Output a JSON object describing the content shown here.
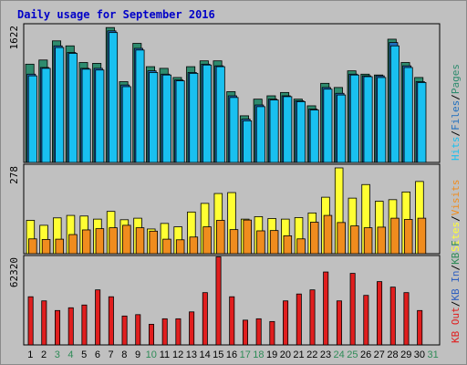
{
  "title": "Daily usage for September 2016",
  "colors": {
    "pages": "#2e8b6e",
    "files": "#1f6fbf",
    "hits": "#19c0f0",
    "visits": "#ffff33",
    "sites": "#f08c1e",
    "kb": "#e01e1e",
    "kb_in": "#2e5fbf",
    "kb_out": "#2e8b57",
    "weekend_label": "#2e8b57"
  },
  "chart_data": [
    {
      "type": "bar",
      "panel": "top",
      "ymax_label": "1622",
      "ylim": [
        0,
        1622
      ],
      "ylabel_parts": [
        "Pages",
        "/",
        "Files",
        "/",
        "Hits"
      ],
      "categories": [
        "1",
        "2",
        "3",
        "4",
        "5",
        "6",
        "7",
        "8",
        "9",
        "10",
        "11",
        "12",
        "13",
        "14",
        "15",
        "16",
        "17",
        "18",
        "19",
        "20",
        "21",
        "22",
        "23",
        "24",
        "25",
        "26",
        "27",
        "28",
        "29",
        "30"
      ],
      "series": [
        {
          "name": "Pages",
          "values": [
            1180,
            1230,
            1460,
            1400,
            1200,
            1190,
            1620,
            970,
            1430,
            1150,
            1130,
            1020,
            1150,
            1220,
            1220,
            850,
            560,
            760,
            800,
            840,
            760,
            680,
            950,
            900,
            1100,
            1060,
            1050,
            1480,
            1200,
            1020
          ]
        },
        {
          "name": "Files",
          "values": [
            1060,
            1140,
            1400,
            1320,
            1130,
            1130,
            1580,
            930,
            1370,
            1100,
            1060,
            990,
            1080,
            1180,
            1160,
            800,
            520,
            690,
            760,
            800,
            740,
            640,
            900,
            830,
            1060,
            1040,
            1040,
            1440,
            1160,
            970
          ]
        },
        {
          "name": "Hits",
          "values": [
            1040,
            1130,
            1380,
            1310,
            1120,
            1110,
            1560,
            910,
            1350,
            1080,
            1050,
            980,
            1070,
            1170,
            1150,
            780,
            500,
            670,
            750,
            790,
            730,
            630,
            880,
            810,
            1050,
            1030,
            1020,
            1400,
            1140,
            960
          ]
        }
      ]
    },
    {
      "type": "bar",
      "panel": "middle",
      "ymax_label": "278",
      "ylim": [
        0,
        278
      ],
      "ylabel_parts": [
        "Visits",
        "/",
        "Sites"
      ],
      "categories": [
        "1",
        "2",
        "3",
        "4",
        "5",
        "6",
        "7",
        "8",
        "9",
        "10",
        "11",
        "12",
        "13",
        "14",
        "15",
        "16",
        "17",
        "18",
        "19",
        "20",
        "21",
        "22",
        "23",
        "24",
        "25",
        "26",
        "27",
        "28",
        "29",
        "30"
      ],
      "series": [
        {
          "name": "Visits",
          "values": [
            108,
            92,
            116,
            124,
            122,
            112,
            137,
            110,
            115,
            80,
            98,
            87,
            135,
            163,
            195,
            198,
            112,
            120,
            114,
            112,
            117,
            132,
            183,
            278,
            180,
            224,
            170,
            175,
            200,
            234
          ]
        },
        {
          "name": "Sites",
          "values": [
            48,
            46,
            47,
            62,
            77,
            81,
            84,
            92,
            84,
            73,
            47,
            45,
            54,
            87,
            108,
            78,
            109,
            74,
            75,
            58,
            48,
            102,
            124,
            101,
            90,
            84,
            86,
            115,
            111,
            115
          ]
        }
      ]
    },
    {
      "type": "bar",
      "panel": "bottom",
      "ymax_label": "62320",
      "ylim": [
        0,
        62320
      ],
      "ylabel_parts": [
        "KB F",
        "/",
        "KB In",
        "/",
        "KB Out"
      ],
      "categories": [
        "1",
        "2",
        "3",
        "4",
        "5",
        "6",
        "7",
        "8",
        "9",
        "10",
        "11",
        "12",
        "13",
        "14",
        "15",
        "16",
        "17",
        "18",
        "19",
        "20",
        "21",
        "22",
        "23",
        "24",
        "25",
        "26",
        "27",
        "28",
        "29",
        "30"
      ],
      "series": [
        {
          "name": "KB F",
          "values": [
            35000,
            32000,
            25000,
            27000,
            29000,
            40000,
            35000,
            21000,
            22000,
            15000,
            19000,
            19000,
            24000,
            38000,
            64000,
            35000,
            18000,
            19000,
            17000,
            32000,
            37000,
            40000,
            53000,
            32000,
            52000,
            36000,
            46000,
            42000,
            38000,
            25000
          ]
        }
      ]
    }
  ],
  "x_axis": {
    "days": [
      "1",
      "2",
      "3",
      "4",
      "5",
      "6",
      "7",
      "8",
      "9",
      "10",
      "11",
      "12",
      "13",
      "14",
      "15",
      "16",
      "17",
      "18",
      "19",
      "20",
      "21",
      "22",
      "23",
      "24",
      "25",
      "26",
      "27",
      "28",
      "29",
      "30",
      "31"
    ],
    "weekend_days": [
      "3",
      "4",
      "10",
      "17",
      "18",
      "24",
      "25",
      "31"
    ]
  }
}
